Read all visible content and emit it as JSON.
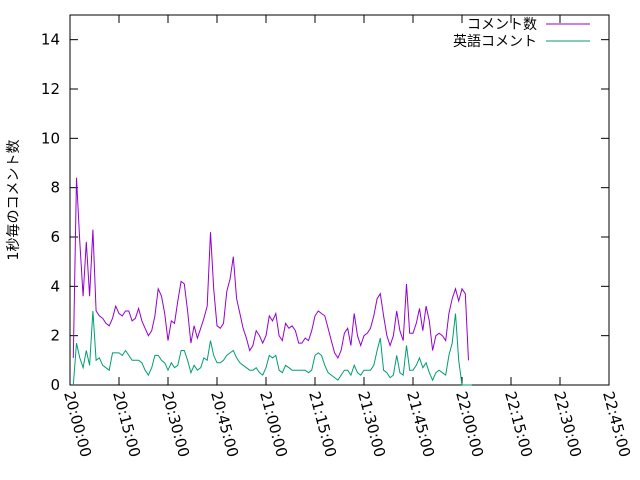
{
  "chart_data": {
    "type": "line",
    "title": "",
    "xlabel": "",
    "ylabel": "1秒毎のコメント数",
    "x_range": [
      "20:00:00",
      "22:45:00"
    ],
    "ylim": [
      0,
      15
    ],
    "yticks": [
      0,
      2,
      4,
      6,
      8,
      10,
      12,
      14
    ],
    "xtick_labels": [
      "20:00:00",
      "20:15:00",
      "20:30:00",
      "20:45:00",
      "21:00:00",
      "21:15:00",
      "21:30:00",
      "21:45:00",
      "22:00:00",
      "22:15:00",
      "22:30:00",
      "22:45:00"
    ],
    "grid": false,
    "legend_position": "top-right",
    "x_times": [
      "20:01:00",
      "20:02:00",
      "20:03:00",
      "20:04:00",
      "20:05:00",
      "20:06:00",
      "20:07:00",
      "20:08:00",
      "20:09:00",
      "20:10:00",
      "20:11:00",
      "20:12:00",
      "20:13:00",
      "20:14:00",
      "20:15:00",
      "20:16:00",
      "20:17:00",
      "20:18:00",
      "20:19:00",
      "20:20:00",
      "20:21:00",
      "20:22:00",
      "20:23:00",
      "20:24:00",
      "20:25:00",
      "20:26:00",
      "20:27:00",
      "20:28:00",
      "20:29:00",
      "20:30:00",
      "20:31:00",
      "20:32:00",
      "20:33:00",
      "20:34:00",
      "20:35:00",
      "20:36:00",
      "20:37:00",
      "20:38:00",
      "20:39:00",
      "20:40:00",
      "20:41:00",
      "20:42:00",
      "20:43:00",
      "20:44:00",
      "20:45:00",
      "20:46:00",
      "20:47:00",
      "20:48:00",
      "20:49:00",
      "20:50:00",
      "20:51:00",
      "20:52:00",
      "20:53:00",
      "20:54:00",
      "20:55:00",
      "20:56:00",
      "20:57:00",
      "20:58:00",
      "20:59:00",
      "21:00:00",
      "21:01:00",
      "21:02:00",
      "21:03:00",
      "21:04:00",
      "21:05:00",
      "21:06:00",
      "21:07:00",
      "21:08:00",
      "21:09:00",
      "21:10:00",
      "21:11:00",
      "21:12:00",
      "21:13:00",
      "21:14:00",
      "21:15:00",
      "21:16:00",
      "21:17:00",
      "21:18:00",
      "21:19:00",
      "21:20:00",
      "21:21:00",
      "21:22:00",
      "21:23:00",
      "21:24:00",
      "21:25:00",
      "21:26:00",
      "21:27:00",
      "21:28:00",
      "21:29:00",
      "21:30:00",
      "21:31:00",
      "21:32:00",
      "21:33:00",
      "21:34:00",
      "21:35:00",
      "21:36:00",
      "21:37:00",
      "21:38:00",
      "21:39:00",
      "21:40:00",
      "21:41:00",
      "21:42:00",
      "21:43:00",
      "21:44:00",
      "21:45:00",
      "21:46:00",
      "21:47:00",
      "21:48:00",
      "21:49:00",
      "21:50:00",
      "21:51:00",
      "21:52:00",
      "21:53:00",
      "21:54:00",
      "21:55:00",
      "21:56:00",
      "21:57:00",
      "21:58:00",
      "21:59:00",
      "22:00:00",
      "22:01:00",
      "22:02:00",
      "22:03:00",
      "22:04:00",
      "22:05:00",
      "22:06:00",
      "22:07:00",
      "22:08:00",
      "22:09:00",
      "22:10:00",
      "22:11:00",
      "22:12:00",
      "22:13:00",
      "22:14:00",
      "22:15:00",
      "22:16:00",
      "22:17:00",
      "22:18:00",
      "22:19:00",
      "22:20:00",
      "22:21:00",
      "22:22:00",
      "22:23:00",
      "22:24:00",
      "22:25:00",
      "22:26:00",
      "22:27:00",
      "22:28:00",
      "22:29:00",
      "22:30:00"
    ],
    "series": [
      {
        "name": "コメント数",
        "color": "#9400d3",
        "values": [
          1.1,
          8.4,
          5.8,
          3.6,
          5.8,
          3.6,
          6.3,
          3.0,
          2.8,
          2.7,
          2.5,
          2.4,
          2.7,
          3.2,
          2.9,
          2.8,
          3.0,
          3.0,
          2.6,
          2.7,
          3.1,
          2.6,
          2.3,
          2.0,
          2.2,
          2.8,
          3.9,
          3.6,
          2.9,
          1.8,
          2.6,
          2.5,
          3.4,
          4.2,
          4.1,
          3.0,
          1.7,
          2.4,
          1.9,
          2.3,
          2.7,
          3.2,
          6.2,
          3.9,
          2.4,
          2.3,
          2.5,
          3.8,
          4.3,
          5.2,
          3.5,
          2.9,
          2.3,
          1.9,
          1.4,
          1.6,
          2.2,
          2.0,
          1.7,
          2.0,
          2.8,
          2.6,
          2.9,
          2.0,
          1.8,
          2.5,
          2.3,
          2.4,
          2.2,
          1.7,
          1.7,
          1.9,
          1.8,
          2.2,
          2.8,
          3.0,
          2.9,
          2.8,
          2.3,
          1.8,
          1.3,
          1.1,
          1.4,
          2.1,
          2.3,
          1.6,
          2.9,
          2.0,
          1.6,
          2.0,
          2.1,
          2.3,
          2.8,
          3.5,
          3.7,
          2.8,
          2.0,
          1.6,
          2.0,
          3.0,
          2.2,
          1.8,
          4.1,
          2.1,
          2.1,
          2.5,
          3.1,
          2.2,
          3.2,
          2.6,
          1.4,
          2.0,
          2.1,
          2.0,
          1.8,
          2.9,
          3.5,
          3.9,
          3.4,
          3.9,
          3.7,
          1.0
        ],
        "x_start_index": 0
      },
      {
        "name": "英語コメント",
        "color": "#009e73",
        "values": [
          0.0,
          1.7,
          1.1,
          0.7,
          1.4,
          0.8,
          3.0,
          1.0,
          1.1,
          0.8,
          0.7,
          0.6,
          1.3,
          1.3,
          1.3,
          1.2,
          1.4,
          1.2,
          1.0,
          1.0,
          1.0,
          0.9,
          0.6,
          0.4,
          0.7,
          1.2,
          1.2,
          1.0,
          0.9,
          0.6,
          0.9,
          0.7,
          0.8,
          1.4,
          1.4,
          1.0,
          0.5,
          0.8,
          0.6,
          0.7,
          1.1,
          1.0,
          1.8,
          1.2,
          0.9,
          0.9,
          1.0,
          1.2,
          1.3,
          1.4,
          1.1,
          0.9,
          0.8,
          0.7,
          0.6,
          0.6,
          0.7,
          0.5,
          0.4,
          0.7,
          1.2,
          1.1,
          1.2,
          0.6,
          0.5,
          0.8,
          0.7,
          0.6,
          0.6,
          0.6,
          0.6,
          0.6,
          0.5,
          0.6,
          1.2,
          1.3,
          1.2,
          0.8,
          0.5,
          0.4,
          0.3,
          0.2,
          0.4,
          0.6,
          0.6,
          0.4,
          0.8,
          0.5,
          0.4,
          0.6,
          0.6,
          0.6,
          0.8,
          1.4,
          1.9,
          0.6,
          0.5,
          0.3,
          0.4,
          1.2,
          0.5,
          0.4,
          1.6,
          0.6,
          0.6,
          0.8,
          1.1,
          0.7,
          0.9,
          0.5,
          0.2,
          0.5,
          0.6,
          0.5,
          0.4,
          1.2,
          1.7,
          2.9,
          1.0,
          0.0,
          0.0,
          0.0,
          0.0
        ],
        "x_start_index": 0
      }
    ]
  }
}
